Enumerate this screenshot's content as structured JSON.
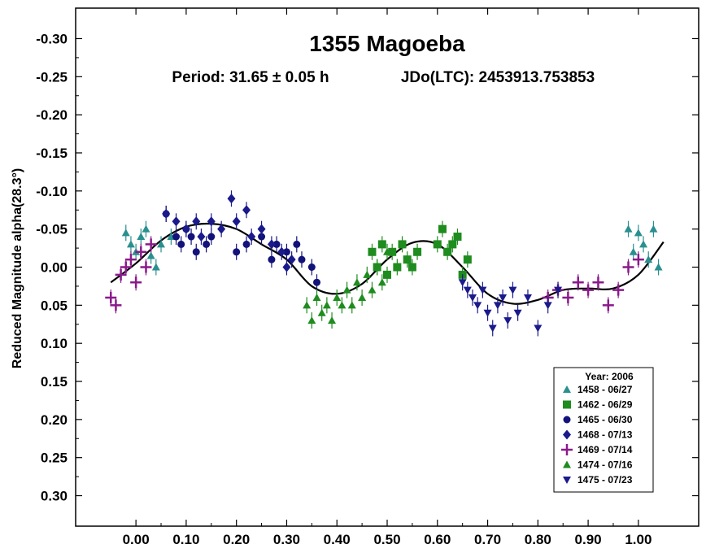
{
  "chart_data": {
    "type": "scatter",
    "title": "1355 Magoeba",
    "subtitle_period": "Period: 31.65 ± 0.05 h",
    "subtitle_jd": "JDo(LTC): 2453913.753853",
    "xlabel": "",
    "ylabel": "Reduced Magnitude alpha(28.3°)",
    "xlim": [
      -0.12,
      1.12
    ],
    "ylim": [
      0.34,
      -0.34
    ],
    "y_inverted": true,
    "x_ticks": [
      "0.00",
      "0.10",
      "0.20",
      "0.30",
      "0.40",
      "0.50",
      "0.60",
      "0.70",
      "0.80",
      "0.90",
      "1.00"
    ],
    "y_ticks": [
      "-0.30",
      "-0.25",
      "-0.20",
      "-0.15",
      "-0.10",
      "-0.05",
      "0.00",
      "0.05",
      "0.10",
      "0.15",
      "0.20",
      "0.25",
      "0.30"
    ],
    "grid": false,
    "legend": {
      "placement": "bottom-right",
      "title": "Year: 2006",
      "entries": [
        {
          "label": "1458 - 06/27",
          "marker": "triangle-up",
          "color": "#2a8f8f"
        },
        {
          "label": "1462 - 06/29",
          "marker": "square",
          "color": "#1e8c1e"
        },
        {
          "label": "1465 - 06/30",
          "marker": "circle",
          "color": "#12127a"
        },
        {
          "label": "1468 - 07/13",
          "marker": "diamond",
          "color": "#1a1a8c"
        },
        {
          "label": "1469 - 07/14",
          "marker": "plus",
          "color": "#8b1a8b"
        },
        {
          "label": "1474 - 07/16",
          "marker": "triangle-up",
          "color": "#1e8c1e"
        },
        {
          "label": "1475 - 07/23",
          "marker": "triangle-down",
          "color": "#1a1a8c"
        }
      ]
    },
    "fit_curve": {
      "x": [
        -0.05,
        0.0,
        0.05,
        0.1,
        0.15,
        0.2,
        0.25,
        0.3,
        0.35,
        0.4,
        0.45,
        0.5,
        0.55,
        0.6,
        0.65,
        0.7,
        0.75,
        0.8,
        0.85,
        0.9,
        0.95,
        1.0,
        1.05
      ],
      "y": [
        0.02,
        -0.005,
        -0.035,
        -0.053,
        -0.057,
        -0.05,
        -0.03,
        -0.01,
        0.025,
        0.035,
        0.022,
        -0.01,
        -0.032,
        -0.03,
        0.0,
        0.035,
        0.048,
        0.043,
        0.03,
        0.028,
        0.028,
        0.01,
        -0.033
      ]
    },
    "series": [
      {
        "name": "1458 - 06/27",
        "marker": "triangle-up",
        "color": "#2a8f8f",
        "x": [
          -0.02,
          -0.01,
          0.0,
          0.01,
          0.02,
          0.03,
          0.04,
          0.05,
          0.07,
          0.98,
          0.99,
          1.0,
          1.01,
          1.02,
          1.03,
          1.04
        ],
        "y": [
          -0.045,
          -0.03,
          -0.02,
          -0.04,
          -0.05,
          -0.015,
          0.0,
          -0.03,
          -0.04,
          -0.05,
          -0.02,
          -0.045,
          -0.03,
          -0.01,
          -0.05,
          0.0
        ]
      },
      {
        "name": "1462 - 06/29",
        "marker": "square",
        "color": "#1e8c1e",
        "x": [
          0.47,
          0.48,
          0.49,
          0.5,
          0.51,
          0.52,
          0.53,
          0.54,
          0.55,
          0.56,
          0.6,
          0.61,
          0.62,
          0.63,
          0.64,
          0.65,
          0.66
        ],
        "y": [
          -0.02,
          0.0,
          -0.03,
          0.01,
          -0.02,
          0.0,
          -0.03,
          -0.01,
          0.0,
          -0.02,
          -0.03,
          -0.05,
          -0.02,
          -0.03,
          -0.04,
          0.01,
          -0.01
        ]
      },
      {
        "name": "1465 - 06/30",
        "marker": "circle",
        "color": "#12127a",
        "x": [
          0.06,
          0.08,
          0.09,
          0.1,
          0.11,
          0.12,
          0.14,
          0.15,
          0.2,
          0.22,
          0.25,
          0.27,
          0.28,
          0.3,
          0.32,
          0.33,
          0.35,
          0.36
        ],
        "y": [
          -0.07,
          -0.04,
          -0.03,
          -0.05,
          -0.04,
          -0.02,
          -0.03,
          -0.04,
          -0.02,
          -0.03,
          -0.04,
          -0.01,
          -0.03,
          -0.02,
          -0.03,
          -0.01,
          0.0,
          0.02
        ]
      },
      {
        "name": "1468 - 07/13",
        "marker": "diamond",
        "color": "#1a1a8c",
        "x": [
          0.06,
          0.08,
          0.1,
          0.12,
          0.13,
          0.15,
          0.17,
          0.19,
          0.2,
          0.22,
          0.23,
          0.25,
          0.27,
          0.29,
          0.3,
          0.31
        ],
        "y": [
          -0.07,
          -0.06,
          -0.05,
          -0.06,
          -0.04,
          -0.06,
          -0.05,
          -0.09,
          -0.06,
          -0.075,
          -0.04,
          -0.05,
          -0.03,
          -0.02,
          0.0,
          -0.01
        ]
      },
      {
        "name": "1469 - 07/14",
        "marker": "plus",
        "color": "#8b1a8b",
        "x": [
          -0.05,
          -0.04,
          -0.03,
          -0.02,
          -0.01,
          0.0,
          0.01,
          0.02,
          0.03,
          0.82,
          0.84,
          0.86,
          0.88,
          0.9,
          0.92,
          0.94,
          0.96,
          0.98,
          1.0
        ],
        "y": [
          0.04,
          0.05,
          0.01,
          0.0,
          -0.01,
          0.02,
          -0.02,
          0.0,
          -0.03,
          0.04,
          0.03,
          0.04,
          0.02,
          0.03,
          0.02,
          0.05,
          0.03,
          0.0,
          -0.01
        ]
      },
      {
        "name": "1474 - 07/16",
        "marker": "triangle-up",
        "color": "#1e8c1e",
        "x": [
          0.34,
          0.35,
          0.36,
          0.37,
          0.38,
          0.39,
          0.4,
          0.41,
          0.42,
          0.43,
          0.44,
          0.45,
          0.46,
          0.47,
          0.48,
          0.49,
          0.5
        ],
        "y": [
          0.05,
          0.07,
          0.04,
          0.06,
          0.05,
          0.07,
          0.04,
          0.05,
          0.03,
          0.05,
          0.02,
          0.04,
          0.01,
          0.03,
          0.0,
          0.02,
          -0.02
        ]
      },
      {
        "name": "1475 - 07/23",
        "marker": "triangle-down",
        "color": "#1a1a8c",
        "x": [
          0.65,
          0.66,
          0.67,
          0.68,
          0.69,
          0.7,
          0.71,
          0.72,
          0.73,
          0.74,
          0.75,
          0.76,
          0.78,
          0.8,
          0.82,
          0.84
        ],
        "y": [
          0.02,
          0.03,
          0.04,
          0.05,
          0.03,
          0.06,
          0.08,
          0.05,
          0.04,
          0.07,
          0.03,
          0.06,
          0.04,
          0.08,
          0.05,
          0.03
        ]
      }
    ]
  }
}
